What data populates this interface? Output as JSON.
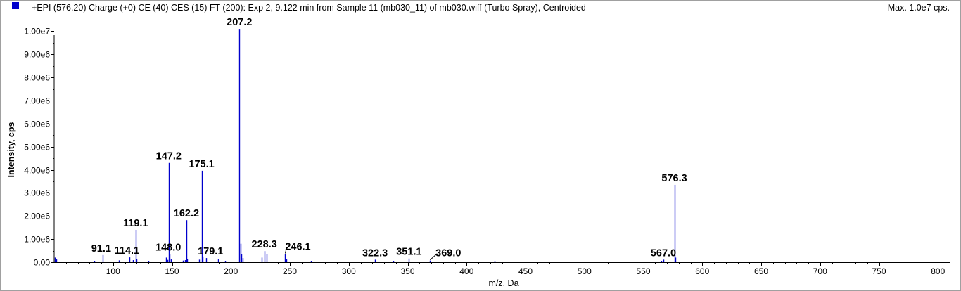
{
  "header": {
    "title": "+EPI (576.20) Charge (+0) CE (40) CES (15) FT (200): Exp 2, 9.122 min from Sample 11 (mb030_11) of mb030.wiff (Turbo Spray), Centroided",
    "max_label": "Max. 1.0e7 cps.",
    "series_color": "#0000cc"
  },
  "chart_data": {
    "type": "bar",
    "title": "+EPI (576.20) Charge (+0) CE (40) CES (15) FT (200): Exp 2, 9.122 min from Sample 11 (mb030_11) of mb030.wiff (Turbo Spray), Centroided",
    "xlabel": "m/z, Da",
    "ylabel": "Intensity, cps",
    "xlim": [
      50,
      810
    ],
    "ylim": [
      0,
      10500000
    ],
    "x_ticks": [
      100,
      150,
      200,
      250,
      300,
      350,
      400,
      450,
      500,
      550,
      600,
      650,
      700,
      750,
      800
    ],
    "y_ticks": [
      {
        "value": 0,
        "label": "0.00"
      },
      {
        "value": 1000000,
        "label": "1.00e6"
      },
      {
        "value": 2000000,
        "label": "2.00e6"
      },
      {
        "value": 3000000,
        "label": "3.00e6"
      },
      {
        "value": 4000000,
        "label": "4.00e6"
      },
      {
        "value": 5000000,
        "label": "5.00e6"
      },
      {
        "value": 6000000,
        "label": "6.00e6"
      },
      {
        "value": 7000000,
        "label": "7.00e6"
      },
      {
        "value": 8000000,
        "label": "8.00e6"
      },
      {
        "value": 9000000,
        "label": "9.00e6"
      },
      {
        "value": 10000000,
        "label": "1.00e7"
      }
    ],
    "peaks": [
      {
        "mz": 50.5,
        "intensity": 200000
      },
      {
        "mz": 51.5,
        "intensity": 120000
      },
      {
        "mz": 84.0,
        "intensity": 60000
      },
      {
        "mz": 91.1,
        "intensity": 310000
      },
      {
        "mz": 105.0,
        "intensity": 80000
      },
      {
        "mz": 114.1,
        "intensity": 210000
      },
      {
        "mz": 117.0,
        "intensity": 90000
      },
      {
        "mz": 119.1,
        "intensity": 1400000
      },
      {
        "mz": 120.0,
        "intensity": 150000
      },
      {
        "mz": 130.0,
        "intensity": 60000
      },
      {
        "mz": 145.0,
        "intensity": 200000
      },
      {
        "mz": 146.0,
        "intensity": 100000
      },
      {
        "mz": 147.2,
        "intensity": 4300000
      },
      {
        "mz": 148.0,
        "intensity": 350000
      },
      {
        "mz": 149.0,
        "intensity": 120000
      },
      {
        "mz": 159.0,
        "intensity": 70000
      },
      {
        "mz": 161.0,
        "intensity": 90000
      },
      {
        "mz": 162.2,
        "intensity": 1820000
      },
      {
        "mz": 163.0,
        "intensity": 140000
      },
      {
        "mz": 173.0,
        "intensity": 110000
      },
      {
        "mz": 175.1,
        "intensity": 3960000
      },
      {
        "mz": 176.0,
        "intensity": 250000
      },
      {
        "mz": 179.1,
        "intensity": 180000
      },
      {
        "mz": 189.0,
        "intensity": 120000
      },
      {
        "mz": 195.0,
        "intensity": 60000
      },
      {
        "mz": 207.2,
        "intensity": 10100000
      },
      {
        "mz": 208.0,
        "intensity": 800000
      },
      {
        "mz": 209.0,
        "intensity": 350000
      },
      {
        "mz": 210.0,
        "intensity": 180000
      },
      {
        "mz": 226.0,
        "intensity": 200000
      },
      {
        "mz": 228.3,
        "intensity": 480000
      },
      {
        "mz": 230.0,
        "intensity": 350000
      },
      {
        "mz": 246.1,
        "intensity": 350000
      },
      {
        "mz": 247.0,
        "intensity": 120000
      },
      {
        "mz": 268.0,
        "intensity": 60000
      },
      {
        "mz": 322.3,
        "intensity": 110000
      },
      {
        "mz": 338.0,
        "intensity": 50000
      },
      {
        "mz": 351.1,
        "intensity": 160000
      },
      {
        "mz": 369.0,
        "intensity": 70000
      },
      {
        "mz": 424.0,
        "intensity": 40000
      },
      {
        "mz": 565.0,
        "intensity": 60000
      },
      {
        "mz": 567.0,
        "intensity": 110000
      },
      {
        "mz": 576.3,
        "intensity": 3350000
      },
      {
        "mz": 577.0,
        "intensity": 200000
      }
    ],
    "peak_labels": [
      {
        "text": "91.1",
        "mz": 91.1
      },
      {
        "text": "114.1",
        "mz": 114.1
      },
      {
        "text": "119.1",
        "mz": 119.1
      },
      {
        "text": "148.0",
        "mz": 148.0
      },
      {
        "text": "147.2",
        "mz": 147.2
      },
      {
        "text": "162.2",
        "mz": 162.2
      },
      {
        "text": "175.1",
        "mz": 175.1
      },
      {
        "text": "179.1",
        "mz": 179.1
      },
      {
        "text": "207.2",
        "mz": 207.2
      },
      {
        "text": "228.3",
        "mz": 228.3
      },
      {
        "text": "246.1",
        "mz": 246.1
      },
      {
        "text": "322.3",
        "mz": 322.3
      },
      {
        "text": "351.1",
        "mz": 351.1
      },
      {
        "text": "369.0",
        "mz": 369.0
      },
      {
        "text": "567.0",
        "mz": 567.0
      },
      {
        "text": "576.3",
        "mz": 576.3
      }
    ]
  }
}
